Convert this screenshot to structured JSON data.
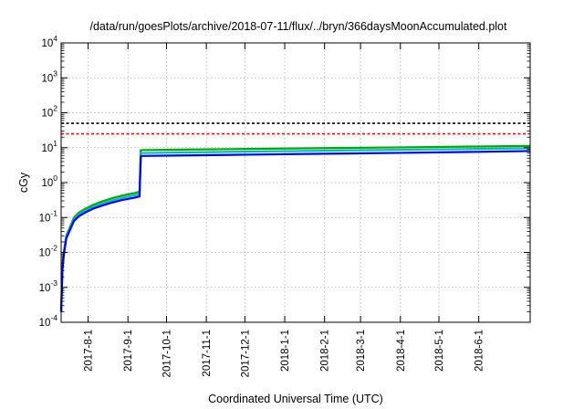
{
  "chart_data": {
    "type": "line",
    "title": "/data/run/goesPlots/archive/2018-07-11/flux/../bryn/366daysMoonAccumulated.plot",
    "xlabel": "Coordinated Universal Time (UTC)",
    "ylabel": "cGy",
    "y_scale": "log",
    "ylim": [
      0.0001,
      10000
    ],
    "y_ticks": [
      {
        "value": 0.0001,
        "base": "10",
        "exp": "-4"
      },
      {
        "value": 0.001,
        "base": "10",
        "exp": "-3"
      },
      {
        "value": 0.01,
        "base": "10",
        "exp": "-2"
      },
      {
        "value": 0.1,
        "base": "10",
        "exp": "-1"
      },
      {
        "value": 1,
        "base": "10",
        "exp": "0"
      },
      {
        "value": 10,
        "base": "10",
        "exp": "1"
      },
      {
        "value": 100,
        "base": "10",
        "exp": "2"
      },
      {
        "value": 1000,
        "base": "10",
        "exp": "3"
      },
      {
        "value": 10000,
        "base": "10",
        "exp": "4"
      }
    ],
    "xlim": [
      "2017-07-11",
      "2018-07-11"
    ],
    "x_ticks": [
      {
        "date": "2017-08-01",
        "label": "2017-8-1"
      },
      {
        "date": "2017-09-01",
        "label": "2017-9-1"
      },
      {
        "date": "2017-10-01",
        "label": "2017-10-1"
      },
      {
        "date": "2017-11-01",
        "label": "2017-11-1"
      },
      {
        "date": "2017-12-01",
        "label": "2017-12-1"
      },
      {
        "date": "2018-01-01",
        "label": "2018-1-1"
      },
      {
        "date": "2018-02-01",
        "label": "2018-2-1"
      },
      {
        "date": "2018-03-01",
        "label": "2018-3-1"
      },
      {
        "date": "2018-04-01",
        "label": "2018-4-1"
      },
      {
        "date": "2018-05-01",
        "label": "2018-5-1"
      },
      {
        "date": "2018-06-01",
        "label": "2018-6-1"
      }
    ],
    "grid": true,
    "reference_lines": [
      {
        "value": 50,
        "color": "#000000",
        "style": "dashed"
      },
      {
        "value": 25,
        "color": "#ff0000",
        "style": "dashed"
      }
    ],
    "series": [
      {
        "color": "#00aa00",
        "points": [
          [
            "2017-07-11",
            0.0002
          ],
          [
            "2017-07-12",
            0.004
          ],
          [
            "2017-07-13",
            0.01
          ],
          [
            "2017-07-15",
            0.03
          ],
          [
            "2017-07-18",
            0.055
          ],
          [
            "2017-07-21",
            0.1
          ],
          [
            "2017-07-25",
            0.14
          ],
          [
            "2017-07-30",
            0.18
          ],
          [
            "2017-08-05",
            0.23
          ],
          [
            "2017-08-12",
            0.29
          ],
          [
            "2017-08-20",
            0.36
          ],
          [
            "2017-08-28",
            0.43
          ],
          [
            "2017-09-06",
            0.5
          ],
          [
            "2017-09-10",
            0.55
          ],
          [
            "2017-09-11",
            8.5
          ],
          [
            "2017-10-15",
            8.8
          ],
          [
            "2017-12-01",
            9.2
          ],
          [
            "2018-02-01",
            9.7
          ],
          [
            "2018-04-01",
            10.2
          ],
          [
            "2018-06-01",
            10.8
          ],
          [
            "2018-07-11",
            11.2
          ]
        ]
      },
      {
        "color": "#00bbbb",
        "points": [
          [
            "2017-07-11",
            0.0002
          ],
          [
            "2017-07-12",
            0.0035
          ],
          [
            "2017-07-13",
            0.009
          ],
          [
            "2017-07-15",
            0.027
          ],
          [
            "2017-07-18",
            0.05
          ],
          [
            "2017-07-21",
            0.09
          ],
          [
            "2017-07-25",
            0.125
          ],
          [
            "2017-07-30",
            0.16
          ],
          [
            "2017-08-05",
            0.2
          ],
          [
            "2017-08-12",
            0.25
          ],
          [
            "2017-08-20",
            0.31
          ],
          [
            "2017-08-28",
            0.37
          ],
          [
            "2017-09-06",
            0.43
          ],
          [
            "2017-09-10",
            0.47
          ],
          [
            "2017-09-11",
            7.0
          ],
          [
            "2017-10-15",
            7.3
          ],
          [
            "2017-12-01",
            7.7
          ],
          [
            "2018-02-01",
            8.2
          ],
          [
            "2018-04-01",
            8.7
          ],
          [
            "2018-06-01",
            9.2
          ],
          [
            "2018-07-11",
            9.6
          ]
        ]
      },
      {
        "color": "#0000ff",
        "points": [
          [
            "2017-07-11",
            0.0002
          ],
          [
            "2017-07-12",
            0.003
          ],
          [
            "2017-07-13",
            0.008
          ],
          [
            "2017-07-15",
            0.025
          ],
          [
            "2017-07-18",
            0.045
          ],
          [
            "2017-07-21",
            0.08
          ],
          [
            "2017-07-25",
            0.11
          ],
          [
            "2017-07-30",
            0.14
          ],
          [
            "2017-08-05",
            0.18
          ],
          [
            "2017-08-12",
            0.22
          ],
          [
            "2017-08-20",
            0.27
          ],
          [
            "2017-08-28",
            0.32
          ],
          [
            "2017-09-06",
            0.37
          ],
          [
            "2017-09-10",
            0.4
          ],
          [
            "2017-09-11",
            5.8
          ],
          [
            "2017-10-15",
            6.0
          ],
          [
            "2017-12-01",
            6.3
          ],
          [
            "2018-02-01",
            6.7
          ],
          [
            "2018-04-01",
            7.1
          ],
          [
            "2018-06-01",
            7.6
          ],
          [
            "2018-07-11",
            8.0
          ]
        ]
      }
    ]
  }
}
